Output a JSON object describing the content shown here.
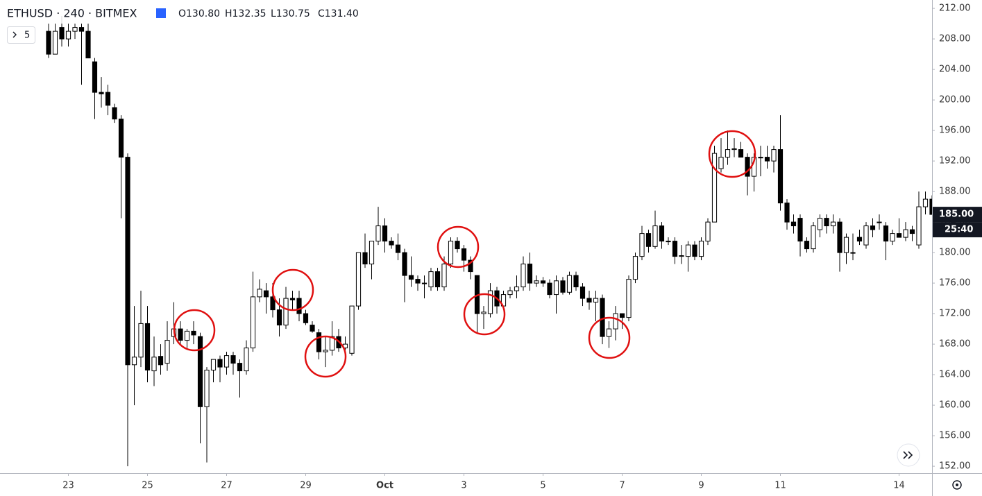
{
  "chart_data": {
    "type": "candlestick",
    "title": "ETHUSD · 240 · BITMEX",
    "legend_ohlc": [
      "O130.80",
      "H132.35",
      "L130.75",
      "C131.40"
    ],
    "indicator_count": "5",
    "last_price_label": {
      "value": 185,
      "label": "185.00"
    },
    "countdown": "25:40",
    "up_color": "#ffffff",
    "down_color": "#000000",
    "edge_color": "#000000",
    "x": [
      0,
      1,
      2,
      3,
      4,
      5,
      6,
      7,
      8,
      9,
      10,
      11,
      12,
      13,
      14,
      15,
      16,
      17,
      18,
      19,
      20,
      21,
      22,
      23,
      24,
      25,
      26,
      27,
      28,
      29,
      30,
      31,
      32,
      33,
      34,
      35,
      36,
      37,
      38,
      39,
      40,
      41,
      42,
      43,
      44,
      45,
      46,
      47,
      48,
      49,
      50,
      51,
      52,
      53,
      54,
      55,
      56,
      57,
      58,
      59,
      60,
      61,
      62,
      63,
      64,
      65,
      66,
      67,
      68,
      69,
      70,
      71,
      72,
      73,
      74,
      75,
      76,
      77,
      78,
      79,
      80,
      81,
      82,
      83,
      84,
      85,
      86,
      87,
      88,
      89,
      90,
      91,
      92,
      93,
      94,
      95,
      96,
      97,
      98,
      99,
      100,
      101,
      102,
      103,
      104,
      105,
      106,
      107,
      108,
      109,
      110,
      111,
      112,
      113,
      114,
      115,
      116,
      117,
      118,
      119,
      120,
      121,
      122,
      123,
      124,
      125,
      126,
      127,
      128,
      129,
      130,
      131,
      132,
      133,
      134
    ],
    "open": [
      209,
      206,
      209.5,
      208,
      209,
      209.5,
      209,
      205,
      201,
      201,
      199,
      197.5,
      192.5,
      165.3,
      166.3,
      170.7,
      164.5,
      166.4,
      165.5,
      169,
      170,
      168.5,
      169.7,
      169,
      159.8,
      164.6,
      166,
      165,
      166.5,
      165.5,
      164.5,
      167.5,
      174.2,
      175,
      174.2,
      172.5,
      170.5,
      174,
      174,
      172,
      170.5,
      169.5,
      167,
      167.2,
      169,
      167.5,
      166.8,
      173,
      180,
      178.5,
      181.5,
      183.5,
      181.5,
      181,
      180,
      177,
      176.5,
      176,
      175.5,
      177.5,
      175.5,
      178.5,
      181.5,
      180.5,
      179,
      177,
      172,
      172,
      175,
      173,
      174.5,
      175,
      175.5,
      178.5,
      176,
      176.3,
      176,
      174.5,
      176.3,
      174.8,
      177,
      175.5,
      174,
      173.5,
      174,
      169,
      170,
      172,
      171.5,
      176.5,
      179.5,
      182.5,
      180.8,
      183.5,
      181.5,
      181.5,
      179.5,
      179.5,
      181,
      179.5,
      181.5,
      184,
      191,
      192.5,
      193.5,
      193.5,
      192.5,
      190,
      192.5,
      192.5,
      192,
      193.5,
      186.5,
      184,
      184.5,
      181.5,
      180.5,
      183,
      184.5,
      183.5,
      184,
      180,
      180,
      182,
      181,
      183.5,
      184,
      183.5,
      181.5,
      182.5,
      182,
      183,
      181,
      186,
      187
    ],
    "high": [
      210,
      210,
      211,
      210,
      210,
      210,
      210,
      205.5,
      203,
      202,
      199.5,
      198,
      193,
      173,
      175,
      173,
      169,
      168,
      171,
      173.5,
      171,
      170,
      171,
      169.5,
      165,
      166,
      166.5,
      167,
      167,
      166,
      168.5,
      177.5,
      176.5,
      176,
      176,
      174,
      175.5,
      175,
      175,
      172.5,
      171,
      170,
      169,
      171,
      170,
      169,
      172.5,
      180,
      182.5,
      181.5,
      186,
      184.5,
      182,
      182.5,
      180.5,
      179.5,
      177,
      177,
      178,
      178,
      179.5,
      182,
      182,
      181,
      179.5,
      177,
      173,
      176,
      175.5,
      175,
      175.5,
      177,
      179.5,
      180,
      177,
      176.8,
      176.5,
      177,
      176.8,
      177.5,
      177.5,
      176,
      175,
      175,
      174.5,
      171,
      173,
      172,
      177,
      180,
      183.5,
      183,
      185.5,
      184,
      182,
      182,
      181,
      181.5,
      181.5,
      182,
      184.5,
      194,
      195,
      196,
      195,
      194.5,
      193,
      193,
      194,
      194,
      194,
      198,
      187,
      185,
      185,
      182,
      184,
      185,
      185,
      185,
      184.5,
      182.5,
      182.5,
      183,
      184,
      184.5,
      185,
      184,
      183,
      184.5,
      184,
      183.5,
      188,
      188,
      187.5
    ],
    "low": [
      205.5,
      206,
      207,
      207,
      208,
      202,
      206,
      197.5,
      199,
      198,
      197,
      184.5,
      152,
      160,
      165,
      163,
      162.5,
      164,
      164.5,
      168,
      168,
      167.5,
      168,
      155,
      152.5,
      163,
      163,
      164,
      164,
      161,
      164,
      167,
      173.5,
      172,
      171.5,
      169,
      170,
      172.5,
      171,
      170.5,
      169.5,
      166,
      165,
      166.5,
      167,
      166.5,
      166.5,
      172.5,
      178,
      176.5,
      181,
      180,
      180.5,
      179,
      173.5,
      175.5,
      175,
      174,
      175,
      175,
      175,
      178,
      180,
      177.5,
      176.5,
      169.5,
      170,
      171.5,
      172,
      172.5,
      174,
      174,
      175,
      175,
      175.5,
      175.5,
      174,
      172,
      174.5,
      174.5,
      175,
      173,
      172.5,
      171,
      168,
      167.5,
      168.5,
      170,
      171,
      176,
      179,
      180,
      180.5,
      180.5,
      181,
      178.5,
      178.5,
      177.5,
      179,
      179,
      181,
      184,
      190.5,
      191.5,
      192.5,
      192.5,
      187.5,
      188,
      190,
      191,
      190.5,
      185.5,
      183,
      182.5,
      179.5,
      180,
      180,
      182,
      182.5,
      182.5,
      177.5,
      178.5,
      179,
      181,
      180.5,
      182,
      183,
      179,
      181,
      182,
      181.5,
      181.5,
      180.5,
      185,
      185
    ],
    "close": [
      206,
      209,
      208,
      209,
      209.5,
      209,
      205.5,
      201,
      200.8,
      199.3,
      197.5,
      192.5,
      165.3,
      166.3,
      170.7,
      164.6,
      166.3,
      165.3,
      168.5,
      170,
      168.5,
      169.7,
      169.2,
      159.8,
      164.6,
      166,
      165,
      166.5,
      165.5,
      164.5,
      167.5,
      174.2,
      175.2,
      174.2,
      172.5,
      170.5,
      174,
      173.8,
      172,
      170.8,
      169.7,
      167,
      167.2,
      169,
      167.5,
      168,
      173,
      180,
      178.5,
      181.5,
      183.5,
      181.5,
      181,
      180,
      177,
      176.5,
      176,
      176,
      177.5,
      175.5,
      178.5,
      181.5,
      180.5,
      179,
      177.5,
      172,
      172.2,
      175,
      173,
      174.5,
      175,
      175.5,
      178.5,
      176,
      176.3,
      176,
      174.5,
      176.3,
      174.8,
      177,
      175.5,
      174,
      173.5,
      174,
      169,
      170,
      172,
      171.5,
      176.5,
      179.5,
      182.5,
      180.8,
      183.5,
      181.5,
      181.5,
      179.5,
      179.6,
      181,
      179.5,
      181.5,
      184,
      193,
      192.5,
      193.5,
      193.6,
      192.5,
      190,
      192.5,
      192.4,
      192,
      193.5,
      186.5,
      184,
      183.5,
      181.5,
      180.5,
      183.5,
      184.5,
      183.5,
      184,
      180,
      182,
      180,
      181.5,
      183.5,
      183,
      184,
      181.5,
      182.5,
      182,
      183,
      182.5,
      186,
      187,
      185
    ],
    "xlim": [
      -7.37,
      134
    ],
    "ylim": [
      151.1,
      213.1
    ],
    "xticks": [
      {
        "value": 3,
        "label": "23"
      },
      {
        "value": 15,
        "label": "25"
      },
      {
        "value": 27,
        "label": "27"
      },
      {
        "value": 39,
        "label": "29"
      },
      {
        "value": 51,
        "label": "Oct"
      },
      {
        "value": 63,
        "label": "3"
      },
      {
        "value": 75,
        "label": "5"
      },
      {
        "value": 87,
        "label": "7"
      },
      {
        "value": 99,
        "label": "9"
      },
      {
        "value": 111,
        "label": "11"
      },
      {
        "value": 129,
        "label": "14"
      }
    ],
    "yticks": [
      {
        "value": 152,
        "label": "152.00"
      },
      {
        "value": 156,
        "label": "156.00"
      },
      {
        "value": 160,
        "label": "160.00"
      },
      {
        "value": 164,
        "label": "164.00"
      },
      {
        "value": 168,
        "label": "168.00"
      },
      {
        "value": 172,
        "label": "172.00"
      },
      {
        "value": 176,
        "label": "176.00"
      },
      {
        "value": 180,
        "label": "180.00"
      },
      {
        "value": 184,
        "label": "184.00"
      },
      {
        "value": 188,
        "label": "188.00"
      },
      {
        "value": 192,
        "label": "192.00"
      },
      {
        "value": 196,
        "label": "196.00"
      },
      {
        "value": 200,
        "label": "200.00"
      },
      {
        "value": 204,
        "label": "204.00"
      },
      {
        "value": 208,
        "label": "208.00"
      },
      {
        "value": 212,
        "label": "212.00"
      }
    ],
    "grid": false
  }
}
